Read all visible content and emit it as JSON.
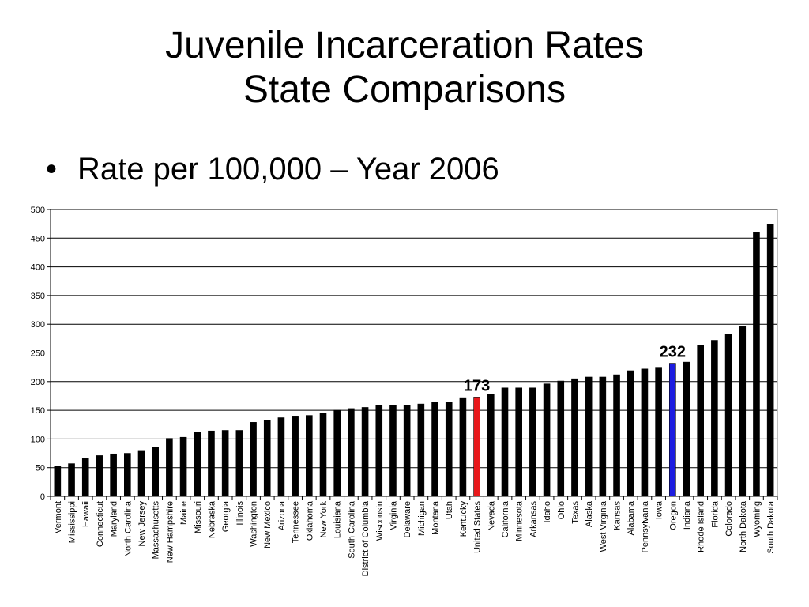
{
  "slide": {
    "title_line1": "Juvenile Incarceration Rates",
    "title_line2": "State Comparisons",
    "bullet_marker": "•",
    "bullet_text": "Rate per 100,000 – Year 2006"
  },
  "chart_data": {
    "type": "bar",
    "title": "",
    "xlabel": "",
    "ylabel": "",
    "ylim": [
      0,
      500
    ],
    "yticks": [
      0,
      50,
      100,
      150,
      200,
      250,
      300,
      350,
      400,
      450,
      500
    ],
    "grid": true,
    "legend": "none",
    "default_color": "#000000",
    "categories": [
      "Vermont",
      "Mississippi",
      "Hawaii",
      "Connecticut",
      "Maryland",
      "North Carolina",
      "New Jersey",
      "Massachusetts",
      "New Hampshire",
      "Maine",
      "Missouri",
      "Nebraska",
      "Georgia",
      "Illinois",
      "Washington",
      "New Mexico",
      "Arizona",
      "Tennessee",
      "Oklahoma",
      "New York",
      "Louisiana",
      "South Carolina",
      "District of Columbia",
      "Wisconsin",
      "Virginia",
      "Delaware",
      "Michigan",
      "Montana",
      "Utah",
      "Kentucky",
      "United States",
      "Nevada",
      "California",
      "Minnesota",
      "Arkansas",
      "Idaho",
      "Ohio",
      "Texas",
      "Alaska",
      "West Virginia",
      "Kansas",
      "Alabama",
      "Pennsylvania",
      "Iowa",
      "Oregon",
      "Indiana",
      "Rhode Island",
      "Florida",
      "Colorado",
      "North Dakota",
      "Wyoming",
      "South Dakota"
    ],
    "values": [
      53,
      57,
      66,
      71,
      74,
      75,
      80,
      86,
      101,
      103,
      112,
      114,
      115,
      115,
      129,
      133,
      137,
      140,
      141,
      145,
      150,
      153,
      155,
      158,
      158,
      159,
      161,
      164,
      164,
      172,
      173,
      178,
      189,
      189,
      189,
      196,
      201,
      205,
      208,
      208,
      212,
      219,
      222,
      225,
      232,
      234,
      264,
      272,
      282,
      296,
      460,
      474
    ],
    "highlights": [
      {
        "category": "United States",
        "color": "#e8181b",
        "label": "173"
      },
      {
        "category": "Oregon",
        "color": "#1c1ce0",
        "label": "232"
      }
    ]
  }
}
